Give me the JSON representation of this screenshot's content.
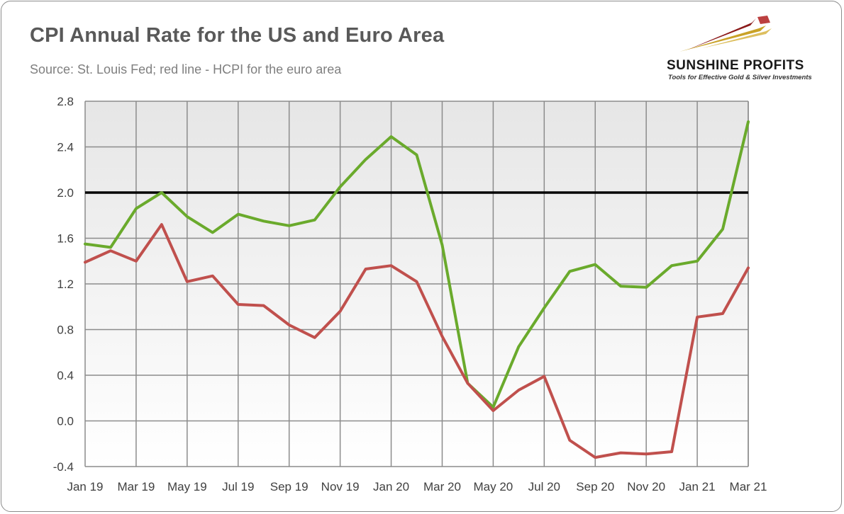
{
  "header": {
    "title": "CPI Annual Rate for the US and Euro Area",
    "subtitle": "Source: St. Louis Fed; red line - HCPI for the euro area"
  },
  "logo": {
    "name": "SUNSHINE PROFITS",
    "tagline": "Tools for Effective Gold & Silver Investments"
  },
  "colors": {
    "us_line": "#6aaa2c",
    "euro_line": "#c0504d",
    "reference_line": "#000000",
    "plot_bg_top": "#e6e6e6",
    "plot_bg_bottom": "#ffffff",
    "grid": "#8c8c8c"
  },
  "chart_data": {
    "type": "line",
    "title": "CPI Annual Rate for the US and Euro Area",
    "xlabel": "",
    "ylabel": "",
    "ylim": [
      -0.4,
      2.8
    ],
    "yticks": [
      -0.4,
      0.0,
      0.4,
      0.8,
      1.2,
      1.6,
      2.0,
      2.4,
      2.8
    ],
    "ytick_labels": [
      "-0.4",
      "0.0",
      "0.4",
      "0.8",
      "1.2",
      "1.6",
      "2.0",
      "2.4",
      "2.8"
    ],
    "x": [
      "Jan 19",
      "Feb 19",
      "Mar 19",
      "Apr 19",
      "May 19",
      "Jun 19",
      "Jul 19",
      "Aug 19",
      "Sep 19",
      "Oct 19",
      "Nov 19",
      "Dec 19",
      "Jan 20",
      "Feb 20",
      "Mar 20",
      "Apr 20",
      "May 20",
      "Jun 20",
      "Jul 20",
      "Aug 20",
      "Sep 20",
      "Oct 20",
      "Nov 20",
      "Dec 20",
      "Jan 21",
      "Feb 21",
      "Mar 21"
    ],
    "xtick_labels": [
      "Jan 19",
      "Mar 19",
      "May 19",
      "Jul 19",
      "Sep 19",
      "Nov 19",
      "Jan 20",
      "Mar 20",
      "May 20",
      "Jul 20",
      "Sep 20",
      "Nov 20",
      "Jan 21",
      "Mar 21"
    ],
    "reference_line": 2.0,
    "grid": true,
    "series": [
      {
        "name": "US CPI",
        "color": "#6aaa2c",
        "values": [
          1.55,
          1.52,
          1.86,
          2.0,
          1.79,
          1.65,
          1.81,
          1.75,
          1.71,
          1.76,
          2.05,
          2.29,
          2.49,
          2.33,
          1.54,
          0.33,
          0.12,
          0.65,
          0.99,
          1.31,
          1.37,
          1.18,
          1.17,
          1.36,
          1.4,
          1.68,
          2.62
        ]
      },
      {
        "name": "HCPI euro area",
        "color": "#c0504d",
        "values": [
          1.39,
          1.49,
          1.4,
          1.72,
          1.22,
          1.27,
          1.02,
          1.01,
          0.84,
          0.73,
          0.96,
          1.33,
          1.36,
          1.22,
          0.74,
          0.33,
          0.09,
          0.27,
          0.39,
          -0.17,
          -0.32,
          -0.28,
          -0.29,
          -0.27,
          0.91,
          0.94,
          1.34
        ]
      }
    ]
  }
}
